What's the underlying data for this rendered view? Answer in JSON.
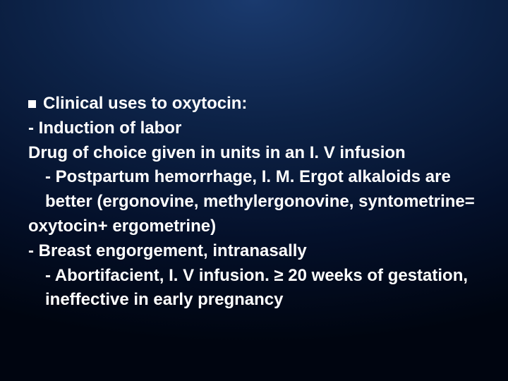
{
  "slide": {
    "background_gradient": [
      "#1a3a6e",
      "#0d2348",
      "#04102a",
      "#000510"
    ],
    "text_color": "#ffffff",
    "font_family": "Arial",
    "font_size_pt": 24,
    "font_weight": "bold",
    "bullet_glyph": "square",
    "bullet_color": "#ffffff",
    "title": "Clinical uses to oxytocin:",
    "lines": {
      "l1": "- Induction of labor",
      "l2": "Drug of choice given in units in an I. V infusion",
      "l3": "- Postpartum hemorrhage, I. M. Ergot alkaloids are",
      "l4": "better (ergonovine, methylergonovine, syntometrine=",
      "l5": "oxytocin+ ergometrine)",
      "l6": "- Breast engorgement, intranasally",
      "l7": "- Abortifacient, I. V infusion. ≥ 20 weeks of gestation, ineffective in early pregnancy"
    }
  }
}
